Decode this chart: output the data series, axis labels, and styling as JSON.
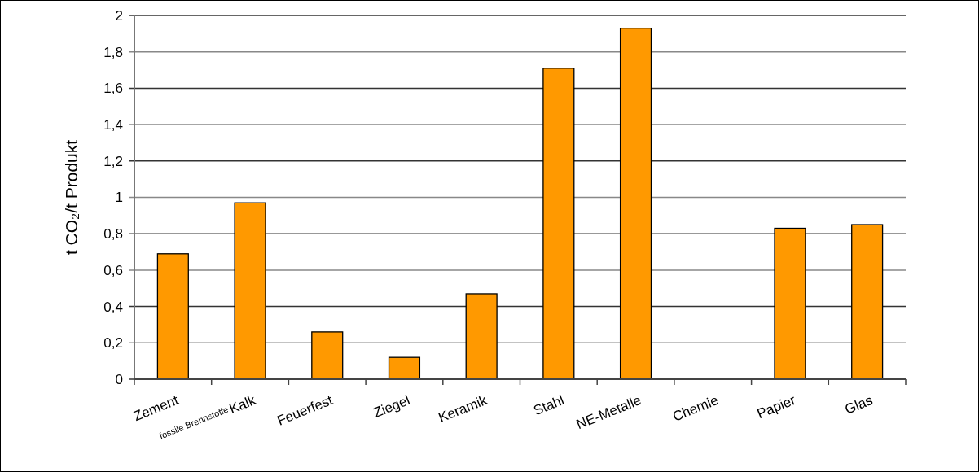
{
  "chart_data": {
    "type": "bar",
    "ylabel": "t CO₂/t Produkt",
    "categories": [
      "Zement",
      "Kalk",
      "Feuerfest",
      "Ziegel",
      "Keramik",
      "Stahl",
      "NE-Metalle",
      "Chemie",
      "Papier",
      "Glas"
    ],
    "values": [
      0.69,
      0.97,
      0.26,
      0.12,
      0.47,
      1.71,
      1.93,
      null,
      0.83,
      0.85
    ],
    "color": "#ff9900",
    "ylim": [
      0,
      2
    ],
    "yticks": [
      0,
      {
        "value": 0.2,
        "label": "0,2"
      },
      {
        "value": 0.4,
        "label": "0,4"
      },
      {
        "value": 0.6,
        "label": "0,6"
      },
      {
        "value": 0.8,
        "label": "0,8"
      },
      1,
      {
        "value": 1.2,
        "label": "1,2"
      },
      {
        "value": 1.4,
        "label": "1,4"
      },
      {
        "value": 1.6,
        "label": "1,6"
      },
      {
        "value": 1.8,
        "label": "1,8"
      },
      2
    ],
    "grid": "y",
    "annotations": [
      "fossile Brennstoffe"
    ]
  }
}
